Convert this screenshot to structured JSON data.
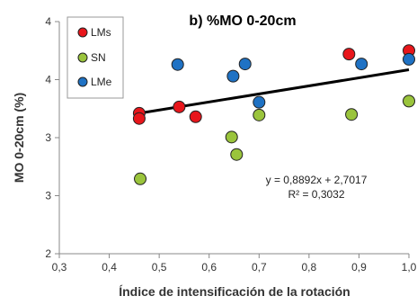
{
  "chart_data": {
    "type": "scatter",
    "title": "b) %MO 0-20cm",
    "xlabel": "Índice de intensificación de la rotación",
    "ylabel": "MO 0-20cm (%)",
    "xlim": [
      0.3,
      1.0
    ],
    "ylim": [
      2,
      4
    ],
    "x_ticks": [
      "0,3",
      "0,4",
      "0,5",
      "0,6",
      "0,7",
      "0,8",
      "0,9",
      "1,0"
    ],
    "x_tick_values": [
      0.3,
      0.4,
      0.5,
      0.6,
      0.7,
      0.8,
      0.9,
      1.0
    ],
    "y_ticks": [
      "2",
      "3",
      "3",
      "4",
      "4"
    ],
    "y_tick_values": [
      2.0,
      2.5,
      3.0,
      3.5,
      4.0
    ],
    "grid": false,
    "legend_position": "top-left",
    "series": [
      {
        "name": "LMs",
        "color": "#e8161b",
        "x": [
          0.46,
          0.46,
          0.54,
          0.573,
          0.88,
          1.0
        ],
        "y": [
          3.21,
          3.165,
          3.265,
          3.18,
          3.72,
          3.75
        ]
      },
      {
        "name": "SN",
        "color": "#9ac43c",
        "x": [
          0.462,
          0.645,
          0.655,
          0.7,
          0.885,
          1.0
        ],
        "y": [
          2.645,
          3.005,
          2.855,
          3.195,
          3.2,
          3.315
        ]
      },
      {
        "name": "LMe",
        "color": "#1f72c4",
        "x": [
          0.537,
          0.648,
          0.672,
          0.7,
          0.905,
          1.0
        ],
        "y": [
          3.63,
          3.53,
          3.635,
          3.305,
          3.635,
          3.675
        ]
      }
    ],
    "trendline": {
      "slope": 0.8892,
      "intercept": 2.7017,
      "x_range": [
        0.46,
        1.0
      ],
      "color": "#000000",
      "equation": "y = 0,8892x + 2,7017",
      "r2": "R² = 0,3032"
    }
  }
}
